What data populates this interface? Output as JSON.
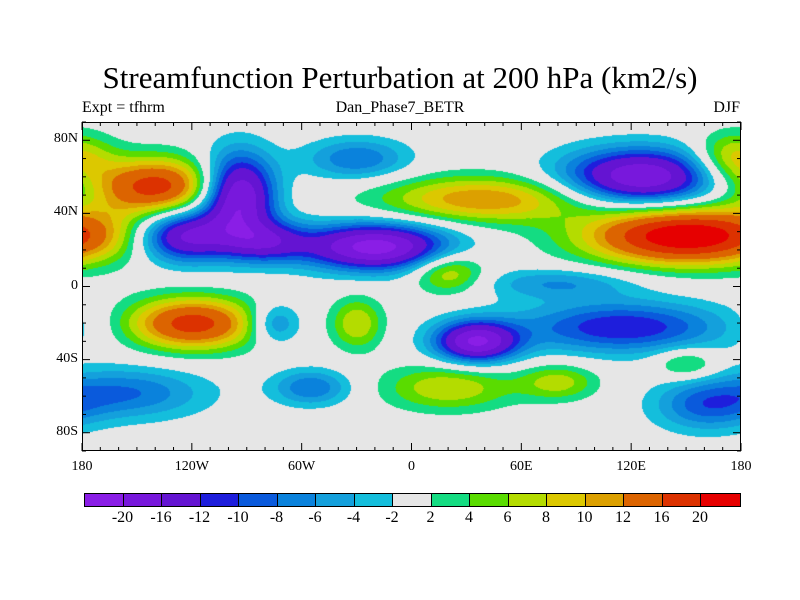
{
  "title": "Streamfunction Perturbation at 200 hPa (km2/s)",
  "left_subtitle": "Expt = tfhrm",
  "center_subtitle": "Dan_Phase7_BETR",
  "right_subtitle": "DJF",
  "chart_data": {
    "type": "heatmap",
    "projection": "cylindrical equidistant",
    "xlim": [
      -180,
      180
    ],
    "ylim": [
      -90,
      90
    ],
    "x_ticks": [
      {
        "value": -180,
        "label": "180"
      },
      {
        "value": -120,
        "label": "120W"
      },
      {
        "value": -60,
        "label": "60W"
      },
      {
        "value": 0,
        "label": "0"
      },
      {
        "value": 60,
        "label": "60E"
      },
      {
        "value": 120,
        "label": "120E"
      },
      {
        "value": 180,
        "label": "180"
      }
    ],
    "y_ticks": [
      {
        "value": 80,
        "label": "80N"
      },
      {
        "value": 40,
        "label": "40N"
      },
      {
        "value": 0,
        "label": "0"
      },
      {
        "value": -40,
        "label": "40S"
      },
      {
        "value": -80,
        "label": "80S"
      }
    ],
    "levels": [
      "-20",
      "-16",
      "-12",
      "-10",
      "-8",
      "-6",
      "-4",
      "-2",
      "2",
      "4",
      "6",
      "8",
      "10",
      "12",
      "16",
      "20"
    ],
    "colors": [
      "#8a1ee6",
      "#7818dc",
      "#6414d2",
      "#1e1edc",
      "#0a5adc",
      "#0a82dc",
      "#14a0dc",
      "#14bedc",
      "#e6e6e6",
      "#14dc82",
      "#5adc00",
      "#b4dc00",
      "#dcc800",
      "#dca000",
      "#dc6400",
      "#dc3200",
      "#e60000"
    ],
    "features": [
      {
        "lon": -140,
        "lat": 55,
        "value": 18,
        "slon": 25,
        "slat": 11
      },
      {
        "lon": -125,
        "lat": 28,
        "value": -18,
        "slon": 18,
        "slat": 10
      },
      {
        "lon": -95,
        "lat": 50,
        "value": -22,
        "slon": 14,
        "slat": 16
      },
      {
        "lon": -80,
        "lat": 25,
        "value": -12,
        "slon": 16,
        "slat": 8
      },
      {
        "lon": -20,
        "lat": 22,
        "value": -22,
        "slon": 28,
        "slat": 9
      },
      {
        "lon": 40,
        "lat": 48,
        "value": 12,
        "slon": 40,
        "slat": 9
      },
      {
        "lon": 125,
        "lat": 60,
        "value": -20,
        "slon": 30,
        "slat": 11
      },
      {
        "lon": 150,
        "lat": 28,
        "value": 24,
        "slon": 38,
        "slat": 11
      },
      {
        "lon": 175,
        "lat": 70,
        "value": 10,
        "slon": 15,
        "slat": 10
      },
      {
        "lon": 20,
        "lat": 8,
        "value": 9,
        "slon": 14,
        "slat": 8
      },
      {
        "lon": -30,
        "lat": 70,
        "value": -8,
        "slon": 20,
        "slat": 8
      },
      {
        "lon": -120,
        "lat": -20,
        "value": 18,
        "slon": 25,
        "slat": 10
      },
      {
        "lon": -75,
        "lat": -20,
        "value": -8,
        "slon": 10,
        "slat": 8
      },
      {
        "lon": -30,
        "lat": -20,
        "value": 8,
        "slon": 10,
        "slat": 10
      },
      {
        "lon": 35,
        "lat": -30,
        "value": -20,
        "slon": 16,
        "slat": 8
      },
      {
        "lon": 115,
        "lat": -22,
        "value": -12,
        "slon": 40,
        "slat": 10
      },
      {
        "lon": 80,
        "lat": 2,
        "value": -6,
        "slon": 30,
        "slat": 6
      },
      {
        "lon": -155,
        "lat": -58,
        "value": -8,
        "slon": 30,
        "slat": 10
      },
      {
        "lon": -55,
        "lat": -55,
        "value": -8,
        "slon": 15,
        "slat": 7
      },
      {
        "lon": 20,
        "lat": -55,
        "value": 8,
        "slon": 25,
        "slat": 9
      },
      {
        "lon": 80,
        "lat": -52,
        "value": 7,
        "slon": 15,
        "slat": 7
      },
      {
        "lon": 160,
        "lat": -65,
        "value": -8,
        "slon": 20,
        "slat": 10
      },
      {
        "lon": 150,
        "lat": -42,
        "value": 6,
        "slon": 12,
        "slat": 6
      }
    ]
  }
}
